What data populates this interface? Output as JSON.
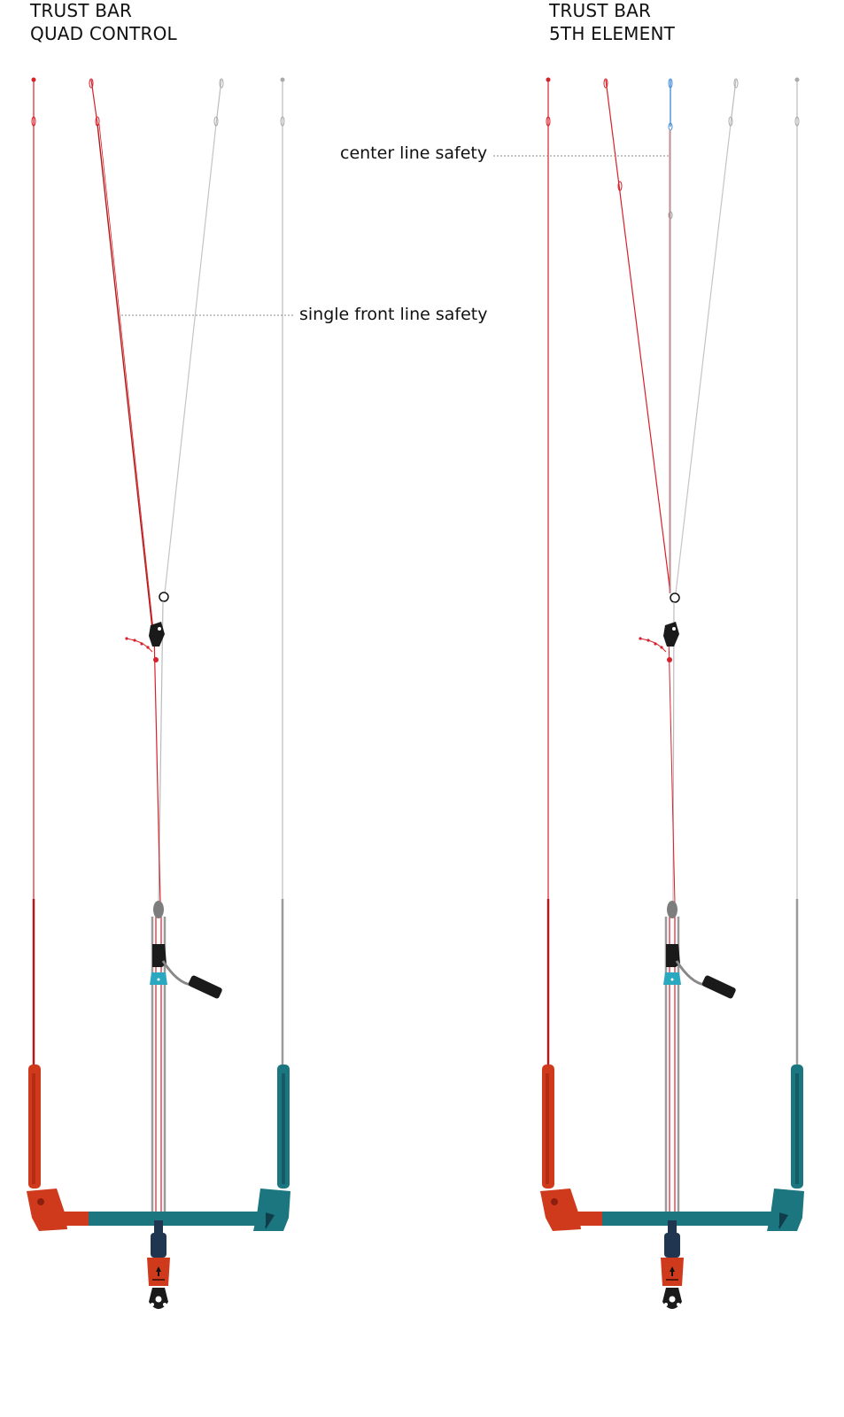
{
  "diagrams": [
    {
      "id": "left",
      "title_line1": "TRUST BAR",
      "title_line2": "QUAD CONTROL"
    },
    {
      "id": "right",
      "title_line1": "TRUST BAR",
      "title_line2": "5TH ELEMENT"
    }
  ],
  "callouts": {
    "center_line_safety": "center line safety",
    "single_front_line_safety": "single front line safety"
  },
  "colors": {
    "front_line_red": "#d8202a",
    "back_line_grey": "#b9b9b9",
    "center_line_blue": "#4a90d9",
    "bar_red": "#cf3a1c",
    "bar_teal": "#1b7680",
    "chicken_loop_navy": "#1f3550",
    "accent_cyan": "#2aa8c0"
  }
}
